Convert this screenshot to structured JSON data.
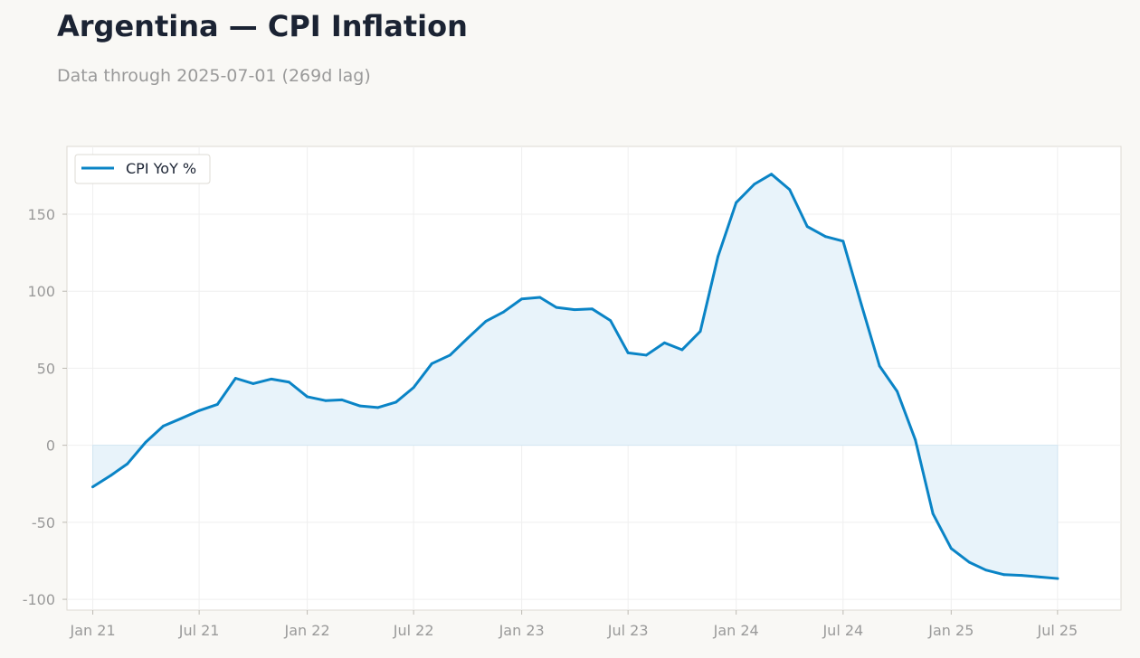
{
  "header": {
    "title": "Argentina — CPI Inflation",
    "subtitle": "Data through 2025-07-01 (269d lag)"
  },
  "colors": {
    "line": "#0a84c6",
    "fill": "#e8f3fa",
    "grid": "#efefef",
    "frame": "#dddad3"
  },
  "chart_data": {
    "type": "area",
    "title": "Argentina — CPI Inflation",
    "subtitle": "Data through 2025-07-01 (269d lag)",
    "grid": true,
    "legend_position": "top-left",
    "x_range": [
      "2020-11-18",
      "2025-10-17"
    ],
    "ylim": [
      -107,
      194
    ],
    "yticks": [
      -100,
      -50,
      0,
      50,
      100,
      150
    ],
    "ytick_labels": [
      "-100",
      "-50",
      "0",
      "50",
      "100",
      "150"
    ],
    "xticks": [
      "2021-01-01",
      "2021-07-01",
      "2022-01-01",
      "2022-07-01",
      "2023-01-01",
      "2023-07-01",
      "2024-01-01",
      "2024-07-01",
      "2025-01-01",
      "2025-07-01"
    ],
    "xtick_labels": [
      "Jan 21",
      "Jul 21",
      "Jan 22",
      "Jul 22",
      "Jan 23",
      "Jul 23",
      "Jan 24",
      "Jul 24",
      "Jan 25",
      "Jul 25"
    ],
    "series": [
      {
        "name": "CPI YoY %",
        "x": [
          "2021-01-01",
          "2021-02-01",
          "2021-03-01",
          "2021-04-01",
          "2021-05-01",
          "2021-06-01",
          "2021-07-01",
          "2021-08-01",
          "2021-09-01",
          "2021-10-01",
          "2021-11-01",
          "2021-12-01",
          "2022-01-01",
          "2022-02-01",
          "2022-03-01",
          "2022-04-01",
          "2022-05-01",
          "2022-06-01",
          "2022-07-01",
          "2022-08-01",
          "2022-09-01",
          "2022-10-01",
          "2022-11-01",
          "2022-12-01",
          "2023-01-01",
          "2023-02-01",
          "2023-03-01",
          "2023-04-01",
          "2023-05-01",
          "2023-06-01",
          "2023-07-01",
          "2023-08-01",
          "2023-09-01",
          "2023-10-01",
          "2023-11-01",
          "2023-12-01",
          "2024-01-01",
          "2024-02-01",
          "2024-03-01",
          "2024-04-01",
          "2024-05-01",
          "2024-06-01",
          "2024-07-01",
          "2024-08-01",
          "2024-09-01",
          "2024-10-01",
          "2024-11-01",
          "2024-12-01",
          "2025-01-01",
          "2025-02-01",
          "2025-03-01",
          "2025-04-01",
          "2025-05-01",
          "2025-06-01",
          "2025-07-01"
        ],
        "values": [
          -27,
          -19.5,
          -12,
          2,
          12.5,
          17.5,
          22.5,
          26.5,
          43.5,
          40,
          43,
          41,
          31.5,
          29,
          29.5,
          25.5,
          24.5,
          28,
          37.5,
          53,
          58.5,
          69.5,
          80.5,
          86.5,
          95,
          96,
          89.5,
          88,
          88.5,
          81,
          60,
          58.5,
          66.5,
          62,
          74,
          122.5,
          157.5,
          169.5,
          176,
          166,
          142,
          135.5,
          132.5,
          91.5,
          51.5,
          35,
          3.5,
          -44.5,
          -67,
          -76,
          -81,
          -84,
          -84.5,
          -85.5,
          -86.5
        ]
      }
    ]
  }
}
